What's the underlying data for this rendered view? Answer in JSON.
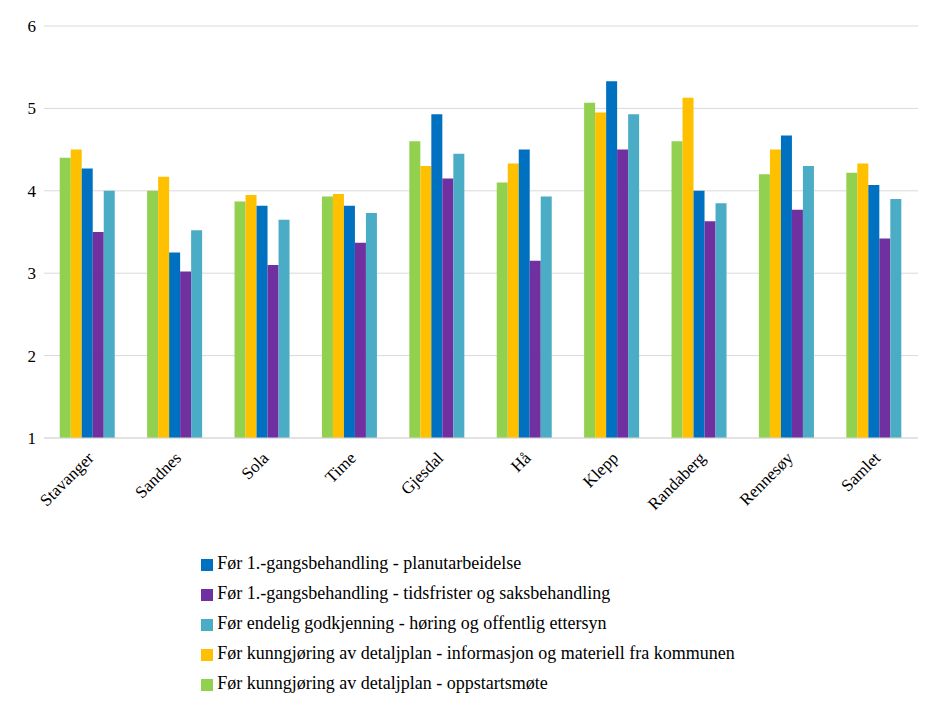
{
  "chart_data": {
    "type": "bar",
    "categories": [
      "Stavanger",
      "Sandnes",
      "Sola",
      "Time",
      "Gjesdal",
      "Hå",
      "Klepp",
      "Randaberg",
      "Rennesøy",
      "Samlet"
    ],
    "series": [
      {
        "name": "Før kunngjøring av detaljplan - oppstartsmøte",
        "color": "#92d050",
        "values": [
          4.4,
          4.0,
          3.87,
          3.93,
          4.6,
          4.1,
          5.07,
          4.6,
          4.2,
          4.22
        ]
      },
      {
        "name": "Før kunngjøring av detaljplan - informasjon og materiell fra kommunen",
        "color": "#ffc000",
        "values": [
          4.5,
          4.17,
          3.95,
          3.96,
          4.3,
          4.33,
          4.95,
          5.13,
          4.5,
          4.33
        ]
      },
      {
        "name": "Før 1.-gangsbehandling - planutarbeidelse",
        "color": "#0070c0",
        "values": [
          4.27,
          3.25,
          3.82,
          3.82,
          4.93,
          4.5,
          5.33,
          4.0,
          4.67,
          4.07
        ]
      },
      {
        "name": "Før 1.-gangsbehandling - tidsfrister og saksbehandling",
        "color": "#7030a0",
        "values": [
          3.5,
          3.02,
          3.1,
          3.37,
          4.15,
          3.15,
          4.5,
          3.63,
          3.77,
          3.42
        ]
      },
      {
        "name": "Før endelig godkjenning - høring og offentlig ettersyn",
        "color": "#4bacc6",
        "values": [
          4.0,
          3.52,
          3.65,
          3.73,
          4.45,
          3.93,
          4.93,
          3.85,
          4.3,
          3.9
        ]
      }
    ],
    "ylim": [
      1,
      6
    ],
    "yticks": [
      1,
      2,
      3,
      4,
      5,
      6
    ],
    "grid": true,
    "legend": "bottom"
  }
}
